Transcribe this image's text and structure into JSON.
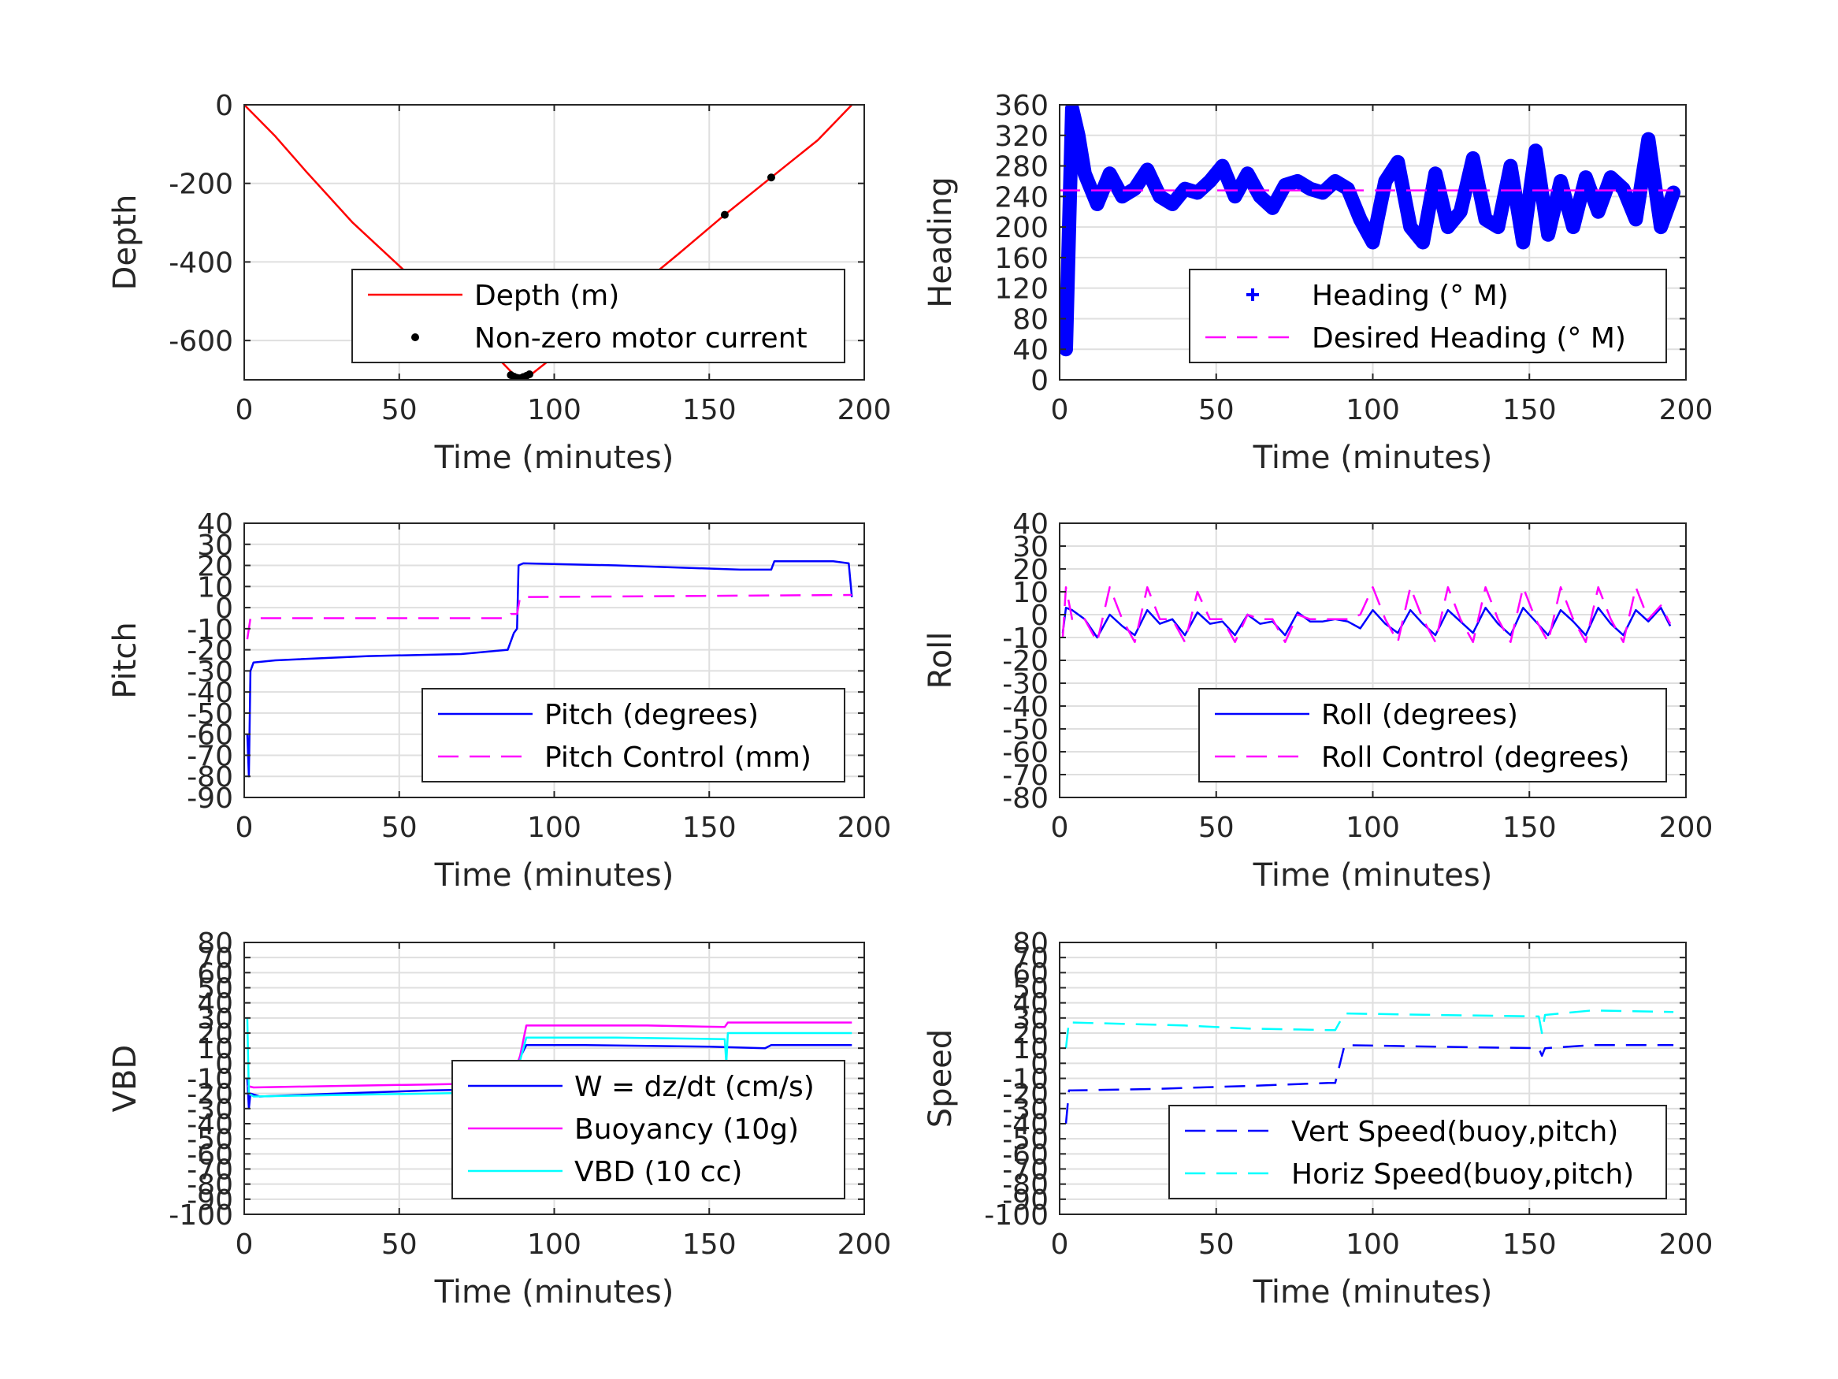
{
  "chart_data": [
    {
      "id": "depth",
      "type": "line",
      "xlabel": "Time (minutes)",
      "ylabel": "Depth",
      "xlim": [
        0,
        200
      ],
      "ylim": [
        -700,
        0
      ],
      "xticks": [
        0,
        50,
        100,
        150,
        200
      ],
      "yticks": [
        -600,
        -400,
        -200,
        0
      ],
      "xtick_labels": [
        "0",
        "50",
        "100",
        "150",
        "200"
      ],
      "ytick_labels": [
        "-600",
        "-400",
        "-200",
        "0"
      ],
      "grid": true,
      "legend_position": "lower-right",
      "series": [
        {
          "name": "Depth (m)",
          "style": "line",
          "color": "#ff0000",
          "x": [
            0,
            10,
            20,
            35,
            50,
            65,
            80,
            88,
            92,
            100,
            120,
            140,
            155,
            170,
            185,
            196
          ],
          "y": [
            0,
            -80,
            -170,
            -300,
            -410,
            -520,
            -630,
            -695,
            -690,
            -640,
            -510,
            -380,
            -280,
            -185,
            -90,
            0
          ]
        },
        {
          "name": "Non-zero motor current",
          "style": "markers",
          "color": "#000000",
          "x": [
            86,
            87,
            88,
            89,
            90,
            91,
            92,
            155,
            170
          ],
          "y": [
            -688,
            -692,
            -695,
            -696,
            -693,
            -690,
            -686,
            -280,
            -185
          ]
        }
      ]
    },
    {
      "id": "heading",
      "type": "scatter",
      "xlabel": "Time (minutes)",
      "ylabel": "Heading",
      "xlim": [
        0,
        200
      ],
      "ylim": [
        0,
        360
      ],
      "xticks": [
        0,
        50,
        100,
        150,
        200
      ],
      "yticks": [
        0,
        40,
        80,
        120,
        160,
        200,
        240,
        280,
        320,
        360
      ],
      "xtick_labels": [
        "0",
        "50",
        "100",
        "150",
        "200"
      ],
      "ytick_labels": [
        "0",
        "40",
        "80",
        "120",
        "160",
        "200",
        "240",
        "280",
        "320",
        "360"
      ],
      "grid": true,
      "legend_position": "lower-right",
      "series": [
        {
          "name": "Heading (° M)",
          "style": "markers",
          "color": "#0000ff",
          "x": [
            0,
            2,
            4,
            6,
            8,
            12,
            16,
            20,
            24,
            28,
            32,
            36,
            40,
            44,
            48,
            52,
            56,
            60,
            64,
            68,
            72,
            76,
            80,
            84,
            88,
            92,
            96,
            100,
            104,
            108,
            112,
            116,
            120,
            124,
            128,
            132,
            136,
            140,
            144,
            148,
            152,
            156,
            160,
            164,
            168,
            172,
            176,
            180,
            184,
            188,
            192,
            196
          ],
          "y": [
            80,
            40,
            355,
            320,
            270,
            230,
            270,
            240,
            250,
            275,
            240,
            230,
            250,
            245,
            260,
            280,
            240,
            270,
            240,
            225,
            255,
            260,
            250,
            245,
            260,
            250,
            210,
            180,
            260,
            285,
            200,
            180,
            270,
            200,
            220,
            290,
            210,
            200,
            280,
            180,
            300,
            190,
            260,
            200,
            265,
            220,
            265,
            250,
            210,
            315,
            200,
            245
          ]
        },
        {
          "name": "Desired Heading (° M)",
          "style": "dashed",
          "color": "#ff00ff",
          "x": [
            0,
            196
          ],
          "y": [
            248,
            248
          ]
        }
      ]
    },
    {
      "id": "pitch",
      "type": "line",
      "xlabel": "Time (minutes)",
      "ylabel": "Pitch",
      "xlim": [
        0,
        200
      ],
      "ylim": [
        -90,
        40
      ],
      "xticks": [
        0,
        50,
        100,
        150,
        200
      ],
      "yticks": [
        -90,
        -80,
        -70,
        -60,
        -50,
        -40,
        -30,
        -20,
        -10,
        0,
        10,
        20,
        30,
        40
      ],
      "xtick_labels": [
        "0",
        "50",
        "100",
        "150",
        "200"
      ],
      "ytick_labels": [
        "-90",
        "-80",
        "-70",
        "-60",
        "-50",
        "-40",
        "-30",
        "-20",
        "-10",
        "0",
        "10",
        "20",
        "30",
        "40"
      ],
      "grid": true,
      "legend_position": "lower-right",
      "series": [
        {
          "name": "Pitch (degrees)",
          "style": "line",
          "color": "#0000ff",
          "x": [
            1,
            1.5,
            2,
            3,
            10,
            40,
            70,
            85,
            87,
            88,
            88.5,
            90,
            120,
            160,
            170,
            171,
            190,
            195,
            196
          ],
          "y": [
            -60,
            -80,
            -30,
            -26,
            -25,
            -23,
            -22,
            -20,
            -12,
            -10,
            20,
            21,
            20,
            18,
            18,
            22,
            22,
            21,
            5
          ]
        },
        {
          "name": "Pitch Control (mm)",
          "style": "dashed",
          "color": "#ff00ff",
          "x": [
            1,
            2,
            3,
            85,
            86,
            88,
            89,
            196
          ],
          "y": [
            -15,
            -5,
            -5,
            -5,
            -3,
            -3,
            5,
            6
          ]
        }
      ]
    },
    {
      "id": "roll",
      "type": "line",
      "xlabel": "Time (minutes)",
      "ylabel": "Roll",
      "xlim": [
        0,
        200
      ],
      "ylim": [
        -80,
        40
      ],
      "xticks": [
        0,
        50,
        100,
        150,
        200
      ],
      "yticks": [
        -80,
        -70,
        -60,
        -50,
        -40,
        -30,
        -20,
        -10,
        0,
        10,
        20,
        30,
        40
      ],
      "xtick_labels": [
        "0",
        "50",
        "100",
        "150",
        "200"
      ],
      "ytick_labels": [
        "-80",
        "-70",
        "-60",
        "-50",
        "-40",
        "-30",
        "-20",
        "-10",
        "0",
        "10",
        "20",
        "30",
        "40"
      ],
      "grid": true,
      "legend_position": "lower-right",
      "series": [
        {
          "name": "Roll (degrees)",
          "style": "line",
          "color": "#0000ff",
          "x": [
            1,
            2,
            4,
            8,
            12,
            16,
            20,
            24,
            28,
            32,
            36,
            40,
            44,
            48,
            52,
            56,
            60,
            64,
            68,
            72,
            76,
            80,
            84,
            88,
            92,
            96,
            100,
            104,
            108,
            112,
            116,
            120,
            124,
            128,
            132,
            136,
            140,
            144,
            148,
            152,
            156,
            160,
            164,
            168,
            172,
            176,
            180,
            184,
            188,
            192,
            195
          ],
          "y": [
            -8,
            3,
            2,
            -2,
            -10,
            0,
            -5,
            -9,
            2,
            -4,
            -2,
            -9,
            1,
            -4,
            -3,
            -9,
            0,
            -4,
            -3,
            -9,
            1,
            -3,
            -3,
            -2,
            -3,
            -6,
            2,
            -4,
            -8,
            2,
            -4,
            -9,
            2,
            -3,
            -8,
            3,
            -4,
            -9,
            3,
            -3,
            -9,
            2,
            -3,
            -9,
            3,
            -4,
            -9,
            2,
            -3,
            3,
            -5
          ]
        },
        {
          "name": "Roll Control (degrees)",
          "style": "dashed",
          "color": "#ff00ff",
          "x": [
            1,
            2,
            4,
            8,
            12,
            16,
            20,
            24,
            28,
            32,
            36,
            40,
            44,
            48,
            52,
            56,
            60,
            64,
            68,
            72,
            76,
            80,
            84,
            88,
            92,
            96,
            100,
            104,
            108,
            112,
            116,
            120,
            124,
            128,
            132,
            136,
            140,
            144,
            148,
            152,
            156,
            160,
            164,
            168,
            172,
            176,
            180,
            184,
            188,
            192,
            195
          ],
          "y": [
            -10,
            12,
            -2,
            -2,
            -12,
            12,
            -2,
            -12,
            12,
            -2,
            -2,
            -12,
            10,
            -2,
            -2,
            -12,
            0,
            -2,
            -2,
            -12,
            0,
            -2,
            -2,
            -2,
            -2,
            0,
            12,
            -2,
            -12,
            12,
            -2,
            -12,
            12,
            -2,
            -12,
            12,
            -2,
            -12,
            12,
            -2,
            -12,
            12,
            -2,
            -12,
            12,
            -2,
            -12,
            12,
            -2,
            4,
            -4
          ]
        }
      ]
    },
    {
      "id": "vbd",
      "type": "line",
      "xlabel": "Time (minutes)",
      "ylabel": "VBD",
      "xlim": [
        0,
        200
      ],
      "ylim": [
        -100,
        80
      ],
      "xticks": [
        0,
        50,
        100,
        150,
        200
      ],
      "yticks": [
        -100,
        -90,
        -80,
        -70,
        -60,
        -50,
        -40,
        -30,
        -20,
        -10,
        0,
        10,
        20,
        30,
        40,
        50,
        60,
        70,
        80
      ],
      "xtick_labels": [
        "0",
        "50",
        "100",
        "150",
        "200"
      ],
      "ytick_labels": [
        "-100",
        "-90",
        "-80",
        "-70",
        "-60",
        "-50",
        "-40",
        "-30",
        "-20",
        "-10",
        "0",
        "10",
        "20",
        "30",
        "40",
        "50",
        "60",
        "70",
        "80"
      ],
      "grid": true,
      "legend_position": "lower-right",
      "series": [
        {
          "name": "W = dz/dt (cm/s)",
          "style": "line",
          "color": "#0000ff",
          "x": [
            1,
            1.5,
            2,
            5,
            30,
            60,
            86,
            88,
            91,
            110,
            150,
            168,
            170,
            196
          ],
          "y": [
            -10,
            -30,
            -20,
            -22,
            -20,
            -18,
            -17,
            0,
            12,
            12,
            11,
            10,
            12,
            12
          ]
        },
        {
          "name": "Buoyancy (10g)",
          "style": "line",
          "color": "#ff00ff",
          "x": [
            1,
            3,
            30,
            60,
            86,
            89,
            91,
            130,
            155,
            156,
            196
          ],
          "y": [
            -15,
            -16,
            -15,
            -14,
            -13,
            5,
            25,
            25,
            24,
            27,
            27
          ]
        },
        {
          "name": "VBD (10 cc)",
          "style": "line",
          "color": "#00ffff",
          "x": [
            1,
            1.5,
            3,
            30,
            60,
            86,
            89,
            91,
            120,
            155,
            155.5,
            156,
            196
          ],
          "y": [
            30,
            -20,
            -22,
            -21,
            -20,
            -19,
            2,
            17,
            17,
            16,
            0,
            20,
            20
          ]
        }
      ]
    },
    {
      "id": "speed",
      "type": "line",
      "xlabel": "Time (minutes)",
      "ylabel": "Speed",
      "xlim": [
        0,
        200
      ],
      "ylim": [
        -100,
        80
      ],
      "xticks": [
        0,
        50,
        100,
        150,
        200
      ],
      "yticks": [
        -100,
        -90,
        -80,
        -70,
        -60,
        -50,
        -40,
        -30,
        -20,
        -10,
        0,
        10,
        20,
        30,
        40,
        50,
        60,
        70,
        80
      ],
      "xtick_labels": [
        "0",
        "50",
        "100",
        "150",
        "200"
      ],
      "ytick_labels": [
        "-100",
        "-90",
        "-80",
        "-70",
        "-60",
        "-50",
        "-40",
        "-30",
        "-20",
        "-10",
        "0",
        "10",
        "20",
        "30",
        "40",
        "50",
        "60",
        "70",
        "80"
      ],
      "grid": true,
      "legend_position": "lower-right",
      "series": [
        {
          "name": "Vert Speed(buoy,pitch)",
          "style": "dashed",
          "color": "#0000ff",
          "x": [
            2,
            3,
            4,
            30,
            60,
            86,
            88,
            91,
            120,
            153,
            154,
            155,
            170,
            196
          ],
          "y": [
            -40,
            -18,
            -18,
            -17,
            -15,
            -13,
            -13,
            12,
            11,
            10,
            5,
            10,
            12,
            12
          ]
        },
        {
          "name": "Horiz Speed(buoy,pitch)",
          "style": "dashed",
          "color": "#00ffff",
          "x": [
            2,
            3,
            4,
            40,
            60,
            86,
            88,
            91,
            120,
            153,
            154,
            155,
            170,
            196
          ],
          "y": [
            10,
            28,
            27,
            25,
            23,
            22,
            22,
            33,
            32,
            31,
            20,
            32,
            35,
            34
          ]
        }
      ]
    }
  ]
}
